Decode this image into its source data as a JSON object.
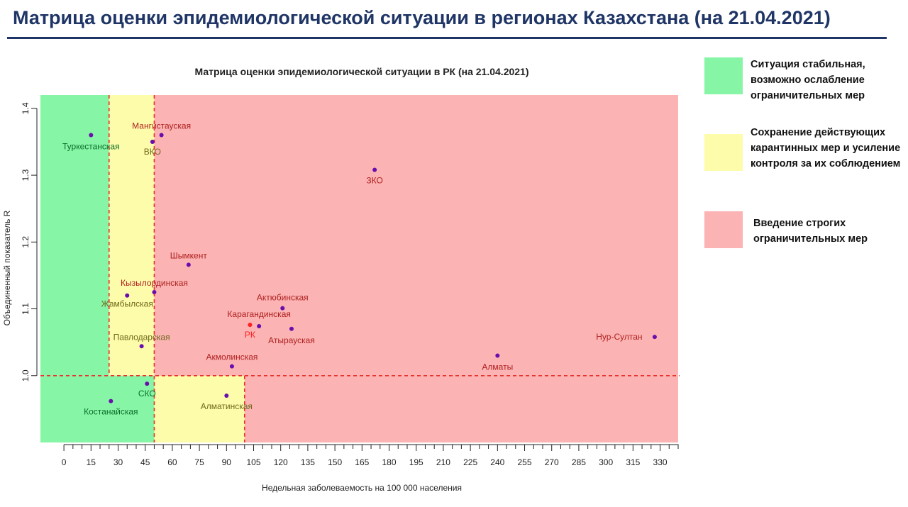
{
  "slide_title": "Матрица оценки эпидемиологической ситуации в регионах Казахстана (на 21.04.2021)",
  "legend": [
    {
      "label": "Ситуация стабильная, возможно ослабление ограничительных мер",
      "color": "#87f5a6"
    },
    {
      "label": "Сохранение действующих карантинных мер и усиление контроля за их соблюдением",
      "color": "#fdfcaa"
    },
    {
      "label": "Введение строгих ограничительных мер",
      "color": "#fbb3b3"
    }
  ],
  "colors": {
    "green_zone": "#87f5a6",
    "yellow_zone": "#fdfcaa",
    "red_zone": "#fbb3b3",
    "threshold_line": "#e8302c",
    "point": "#6a0dad",
    "point_rk": "#ff2020",
    "label_green": "#0a6f2a",
    "label_yellow": "#6f6a1d",
    "label_red": "#b02020",
    "label_rk": "#ff2020"
  },
  "chart_data": {
    "type": "scatter",
    "title": "Матрица оценки эпидемиологической ситуации в РК (на 21.04.2021)",
    "xlabel": "Недельная заболеваемость на 100 000 населения",
    "ylabel": "Объединенный показатель R",
    "xlim": [
      -13,
      340
    ],
    "ylim": [
      0.9,
      1.42
    ],
    "x_ticks": [
      0,
      15,
      30,
      45,
      60,
      75,
      90,
      105,
      120,
      135,
      150,
      165,
      180,
      195,
      210,
      225,
      240,
      255,
      270,
      285,
      300,
      315,
      330
    ],
    "y_ticks": [
      1.0,
      1.1,
      1.2,
      1.3,
      1.4
    ],
    "y_tick_labels": [
      "1.0",
      "1.1",
      "1.2",
      "1.3",
      "1.4"
    ],
    "thresholds": {
      "x_yellow_start_upper": 25,
      "x_red_start": 50,
      "x_red_start_lower": 100,
      "y": 1.0
    },
    "points": [
      {
        "name": "Туркестанская",
        "x": 15,
        "y": 1.36,
        "zone": "green"
      },
      {
        "name": "Мангистауская",
        "x": 54,
        "y": 1.36,
        "zone": "red"
      },
      {
        "name": "ВКО",
        "x": 49,
        "y": 1.35,
        "zone": "yellow"
      },
      {
        "name": "ЗКО",
        "x": 172,
        "y": 1.308,
        "zone": "red"
      },
      {
        "name": "Шымкент",
        "x": 69,
        "y": 1.166,
        "zone": "red"
      },
      {
        "name": "Кызылординская",
        "x": 50,
        "y": 1.125,
        "zone": "red"
      },
      {
        "name": "Жамбылская",
        "x": 35,
        "y": 1.12,
        "zone": "yellow"
      },
      {
        "name": "Актюбинская",
        "x": 121,
        "y": 1.101,
        "zone": "red"
      },
      {
        "name": "Карагандинская",
        "x": 108,
        "y": 1.074,
        "zone": "red"
      },
      {
        "name": "РК",
        "x": 103,
        "y": 1.076,
        "zone": "rk"
      },
      {
        "name": "Атырауская",
        "x": 126,
        "y": 1.07,
        "zone": "red"
      },
      {
        "name": "Павлодарская",
        "x": 43,
        "y": 1.044,
        "zone": "yellow"
      },
      {
        "name": "Акмолинская",
        "x": 93,
        "y": 1.014,
        "zone": "red"
      },
      {
        "name": "Алматы",
        "x": 240,
        "y": 1.03,
        "zone": "red"
      },
      {
        "name": "Нур-Султан",
        "x": 327,
        "y": 1.058,
        "zone": "red"
      },
      {
        "name": "СКО",
        "x": 46,
        "y": 0.988,
        "zone": "green"
      },
      {
        "name": "Костанайская",
        "x": 26,
        "y": 0.962,
        "zone": "green"
      },
      {
        "name": "Алматинская",
        "x": 90,
        "y": 0.97,
        "zone": "yellow"
      }
    ]
  }
}
